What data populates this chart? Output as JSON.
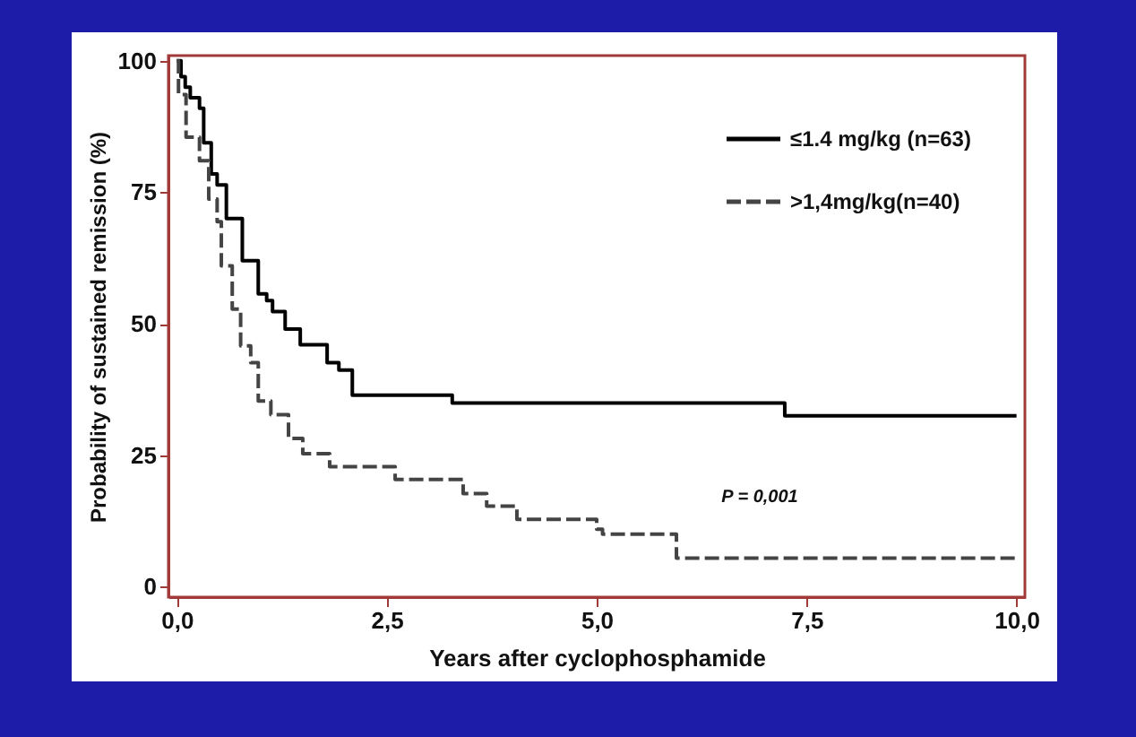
{
  "chart_data": {
    "type": "step",
    "xlabel": "Years after cyclophosphamide",
    "ylabel": "Probability of sustained remission (%)",
    "xlim": [
      -0.1,
      10.1
    ],
    "ylim": [
      -2,
      101
    ],
    "xticks": [
      {
        "value": 0,
        "label": "0,0"
      },
      {
        "value": 2.5,
        "label": "2,5"
      },
      {
        "value": 5,
        "label": "5,0"
      },
      {
        "value": 7.5,
        "label": "7,5"
      },
      {
        "value": 10,
        "label": "10,0"
      }
    ],
    "yticks": [
      0,
      25,
      50,
      75,
      100
    ],
    "legend": "top right",
    "grid": false,
    "annotations": [
      "P = 0,001"
    ],
    "series": [
      {
        "name": "≤1.4 mg/kg (n=63)",
        "color": "#000000",
        "line_style": "solid",
        "x": [
          0,
          0.05,
          0.1,
          0.16,
          0.27,
          0.32,
          0.41,
          0.48,
          0.59,
          0.78,
          0.97,
          1.07,
          1.14,
          1.29,
          1.47,
          1.79,
          1.93,
          2.09,
          3.28,
          7.24,
          10.0
        ],
        "values": [
          100,
          97,
          95,
          93,
          91,
          84.4,
          78.5,
          76.4,
          70,
          62,
          55.7,
          54.4,
          52.3,
          49,
          46,
          42.6,
          41.2,
          36.4,
          34.9,
          32.5,
          32.5
        ]
      },
      {
        "name": ">1,4mg/kg(n=40)",
        "color": "#444444",
        "line_style": "dashed",
        "x": [
          0,
          0.02,
          0.11,
          0.27,
          0.38,
          0.48,
          0.53,
          0.66,
          0.76,
          0.88,
          0.97,
          1.12,
          1.33,
          1.5,
          1.82,
          2.6,
          3.41,
          3.69,
          4.05,
          5.0,
          5.07,
          5.95,
          10.0
        ],
        "values": [
          100,
          93.6,
          85.5,
          81,
          73.7,
          69.4,
          61,
          52.8,
          45.8,
          42.6,
          35.3,
          32.7,
          28.2,
          25.3,
          22.8,
          20.4,
          17.7,
          15.3,
          12.8,
          10.9,
          10,
          5.4,
          5.4
        ]
      }
    ]
  }
}
